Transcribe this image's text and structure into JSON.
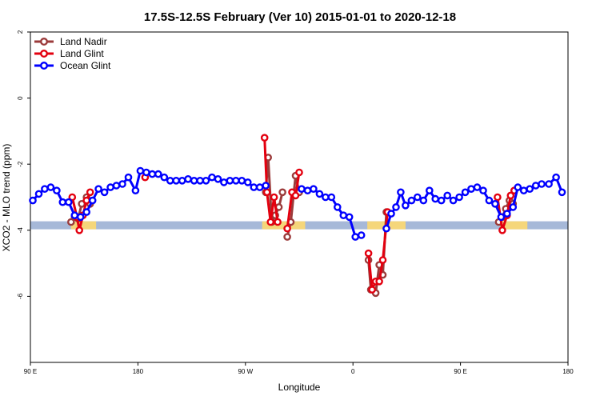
{
  "chart_data": {
    "type": "line",
    "title": "17.5S-12.5S February (Ver 10)   2015-01-01 to 2020-12-18",
    "xlabel": "Longitude",
    "ylabel": "XCO2 - MLO trend (ppm)",
    "x_ticks": [
      {
        "value": 90,
        "label": "90 E"
      },
      {
        "value": 180,
        "label": "180"
      },
      {
        "value": 270,
        "label": "90 W"
      },
      {
        "value": 360,
        "label": "0"
      },
      {
        "value": 450,
        "label": "90 E"
      },
      {
        "value": 540,
        "label": "180"
      }
    ],
    "y_ticks": [
      {
        "value": 2,
        "label": "2"
      },
      {
        "value": 0,
        "label": "0"
      },
      {
        "value": -2,
        "label": "-2"
      },
      {
        "value": -4,
        "label": "-4"
      },
      {
        "value": -6,
        "label": "-6"
      }
    ],
    "xlim": [
      90,
      540
    ],
    "ylim": [
      -8,
      2
    ],
    "legend_position": "top-left",
    "land_mask_y": -3.85,
    "land_mask_color": "#f5d67a",
    "ocean_mask_color": "#a6b8d8",
    "land_segments": [
      [
        124,
        145
      ],
      [
        284,
        320
      ],
      [
        372,
        404
      ],
      [
        483,
        506
      ]
    ],
    "series": [
      {
        "name": "Land Nadir",
        "color": "#9b3b3b",
        "segments": [
          [
            [
              124,
              -3.75
            ],
            [
              127,
              -3.6
            ],
            [
              130,
              -3.65
            ],
            [
              133,
              -3.2
            ],
            [
              137,
              -3.0
            ],
            [
              140,
              -3.2
            ]
          ],
          [
            [
              287,
              -2.85
            ],
            [
              289,
              -1.8
            ],
            [
              292,
              -3.75
            ],
            [
              295,
              -3.55
            ],
            [
              298,
              -3.3
            ],
            [
              301,
              -2.85
            ]
          ],
          [
            [
              305,
              -4.2
            ],
            [
              308,
              -3.75
            ],
            [
              312,
              -2.35
            ],
            [
              315,
              -2.85
            ]
          ],
          [
            [
              373,
              -4.9
            ],
            [
              375,
              -5.8
            ],
            [
              379,
              -5.9
            ],
            [
              382,
              -5.05
            ],
            [
              385,
              -5.35
            ],
            [
              388,
              -3.45
            ]
          ],
          [
            [
              482,
              -3.75
            ],
            [
              485,
              -3.6
            ],
            [
              488,
              -3.35
            ],
            [
              491,
              -3.1
            ],
            [
              494,
              -3.2
            ]
          ]
        ]
      },
      {
        "name": "Land Glint",
        "color": "#e3000f",
        "segments": [
          [
            [
              125,
              -3.0
            ],
            [
              129,
              -3.6
            ],
            [
              131,
              -4.0
            ],
            [
              134,
              -3.55
            ],
            [
              137,
              -3.1
            ],
            [
              140,
              -2.85
            ]
          ],
          [
            [
              286,
              -1.2
            ],
            [
              288,
              -2.85
            ],
            [
              291,
              -3.75
            ],
            [
              294,
              -3.0
            ],
            [
              297,
              -3.75
            ]
          ],
          [
            [
              305,
              -3.95
            ],
            [
              309,
              -2.85
            ],
            [
              312,
              -2.95
            ],
            [
              315,
              -2.25
            ]
          ],
          [
            [
              373,
              -4.7
            ],
            [
              376,
              -5.8
            ],
            [
              379,
              -5.55
            ],
            [
              382,
              -5.55
            ],
            [
              385,
              -4.9
            ],
            [
              389,
              -3.45
            ]
          ],
          [
            [
              481,
              -3.0
            ],
            [
              485,
              -4.0
            ],
            [
              489,
              -3.55
            ],
            [
              492,
              -2.95
            ],
            [
              495,
              -2.8
            ]
          ],
          [
            [
              186,
              -2.4
            ]
          ]
        ]
      },
      {
        "name": "Ocean Glint",
        "color": "#0000ff",
        "segments": [
          [
            [
              92,
              -3.1
            ],
            [
              97,
              -2.9
            ],
            [
              102,
              -2.75
            ],
            [
              107,
              -2.7
            ],
            [
              112,
              -2.8
            ],
            [
              117,
              -3.15
            ],
            [
              122,
              -3.15
            ],
            [
              127,
              -3.55
            ],
            [
              132,
              -3.6
            ],
            [
              137,
              -3.45
            ],
            [
              142,
              -3.1
            ],
            [
              147,
              -2.75
            ],
            [
              152,
              -2.85
            ],
            [
              157,
              -2.7
            ],
            [
              162,
              -2.65
            ],
            [
              167,
              -2.6
            ],
            [
              172,
              -2.4
            ],
            [
              178,
              -2.8
            ],
            [
              182,
              -2.2
            ],
            [
              187,
              -2.25
            ],
            [
              192,
              -2.3
            ],
            [
              197,
              -2.3
            ],
            [
              202,
              -2.4
            ],
            [
              207,
              -2.5
            ],
            [
              212,
              -2.5
            ],
            [
              217,
              -2.5
            ],
            [
              222,
              -2.45
            ],
            [
              227,
              -2.5
            ],
            [
              232,
              -2.5
            ],
            [
              237,
              -2.5
            ],
            [
              242,
              -2.4
            ],
            [
              247,
              -2.45
            ],
            [
              252,
              -2.55
            ],
            [
              257,
              -2.5
            ],
            [
              262,
              -2.5
            ],
            [
              267,
              -2.5
            ],
            [
              272,
              -2.55
            ],
            [
              277,
              -2.7
            ],
            [
              282,
              -2.7
            ],
            [
              287,
              -2.65
            ]
          ],
          [
            [
              317,
              -2.75
            ],
            [
              322,
              -2.8
            ],
            [
              327,
              -2.75
            ],
            [
              332,
              -2.9
            ],
            [
              337,
              -3.0
            ],
            [
              342,
              -3.0
            ],
            [
              347,
              -3.3
            ],
            [
              352,
              -3.55
            ],
            [
              357,
              -3.6
            ],
            [
              362,
              -4.2
            ],
            [
              367,
              -4.15
            ]
          ],
          [
            [
              388,
              -3.95
            ],
            [
              392,
              -3.5
            ],
            [
              396,
              -3.3
            ],
            [
              400,
              -2.85
            ],
            [
              404,
              -3.25
            ],
            [
              409,
              -3.1
            ],
            [
              414,
              -3.0
            ],
            [
              419,
              -3.1
            ],
            [
              424,
              -2.8
            ],
            [
              429,
              -3.05
            ],
            [
              434,
              -3.1
            ],
            [
              439,
              -2.95
            ],
            [
              444,
              -3.1
            ],
            [
              449,
              -3.0
            ],
            [
              454,
              -2.85
            ],
            [
              459,
              -2.75
            ],
            [
              464,
              -2.7
            ],
            [
              469,
              -2.8
            ],
            [
              474,
              -3.1
            ],
            [
              479,
              -3.2
            ],
            [
              484,
              -3.6
            ],
            [
              489,
              -3.5
            ],
            [
              494,
              -3.3
            ],
            [
              498,
              -2.7
            ],
            [
              503,
              -2.8
            ],
            [
              508,
              -2.75
            ],
            [
              513,
              -2.65
            ],
            [
              518,
              -2.6
            ],
            [
              524,
              -2.6
            ],
            [
              530,
              -2.4
            ],
            [
              535,
              -2.85
            ]
          ]
        ]
      }
    ]
  }
}
